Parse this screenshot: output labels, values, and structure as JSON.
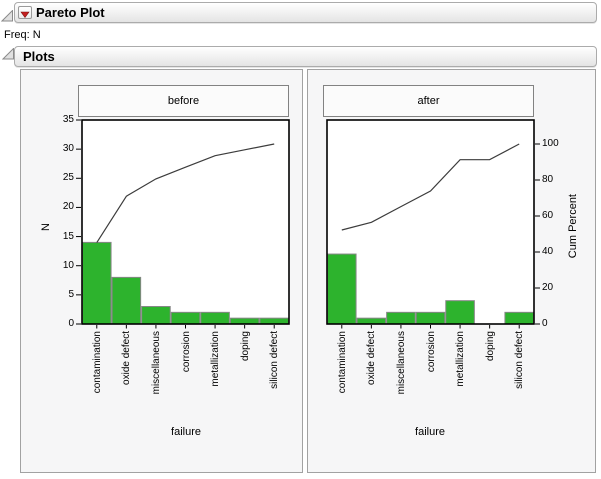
{
  "window": {
    "outline_title": "Pareto Plot",
    "freq_label": "Freq: N",
    "plots_title": "Plots"
  },
  "colors": {
    "bar_fill": "#2db32d",
    "bar_stroke": "#868686",
    "cum_line": "#3c3c3c",
    "menu_red": "#c41e1e",
    "frame": "#000000"
  },
  "chart_data": [
    {
      "type": "bar",
      "subtype": "pareto-with-cumulative-line",
      "group": "before",
      "categories": [
        "contamination",
        "oxide defect",
        "miscellaneous",
        "corrosion",
        "metallization",
        "doping",
        "silicon defect"
      ],
      "values": [
        14,
        8,
        3,
        2,
        2,
        1,
        1
      ],
      "total": 31,
      "cum_counts": [
        14,
        22,
        25,
        27,
        29,
        30,
        31
      ],
      "cum_percent": [
        45.2,
        71.0,
        80.6,
        87.1,
        93.5,
        96.8,
        100
      ],
      "xlabel": "failure",
      "ylabel": "N",
      "ylim": [
        0,
        35
      ],
      "y_ticks": [
        0,
        5,
        10,
        15,
        20,
        25,
        30,
        35
      ],
      "grid": false,
      "legend": "none"
    },
    {
      "type": "bar",
      "subtype": "pareto-with-cumulative-line",
      "group": "after",
      "categories": [
        "contamination",
        "oxide defect",
        "miscellaneous",
        "corrosion",
        "metallization",
        "doping",
        "silicon defect"
      ],
      "values": [
        12,
        1,
        2,
        2,
        4,
        0,
        2
      ],
      "total": 23,
      "cum_counts": [
        12,
        13,
        15,
        17,
        21,
        21,
        23
      ],
      "cum_percent": [
        52.2,
        56.5,
        65.2,
        73.9,
        91.3,
        91.3,
        100
      ],
      "xlabel": "failure",
      "ylabel": "",
      "ylim": [
        0,
        35
      ],
      "y2label": "Cum Percent",
      "y2lim": [
        0,
        100
      ],
      "y2_ticks": [
        0,
        20,
        40,
        60,
        80,
        100
      ],
      "grid": false,
      "legend": "none"
    }
  ]
}
